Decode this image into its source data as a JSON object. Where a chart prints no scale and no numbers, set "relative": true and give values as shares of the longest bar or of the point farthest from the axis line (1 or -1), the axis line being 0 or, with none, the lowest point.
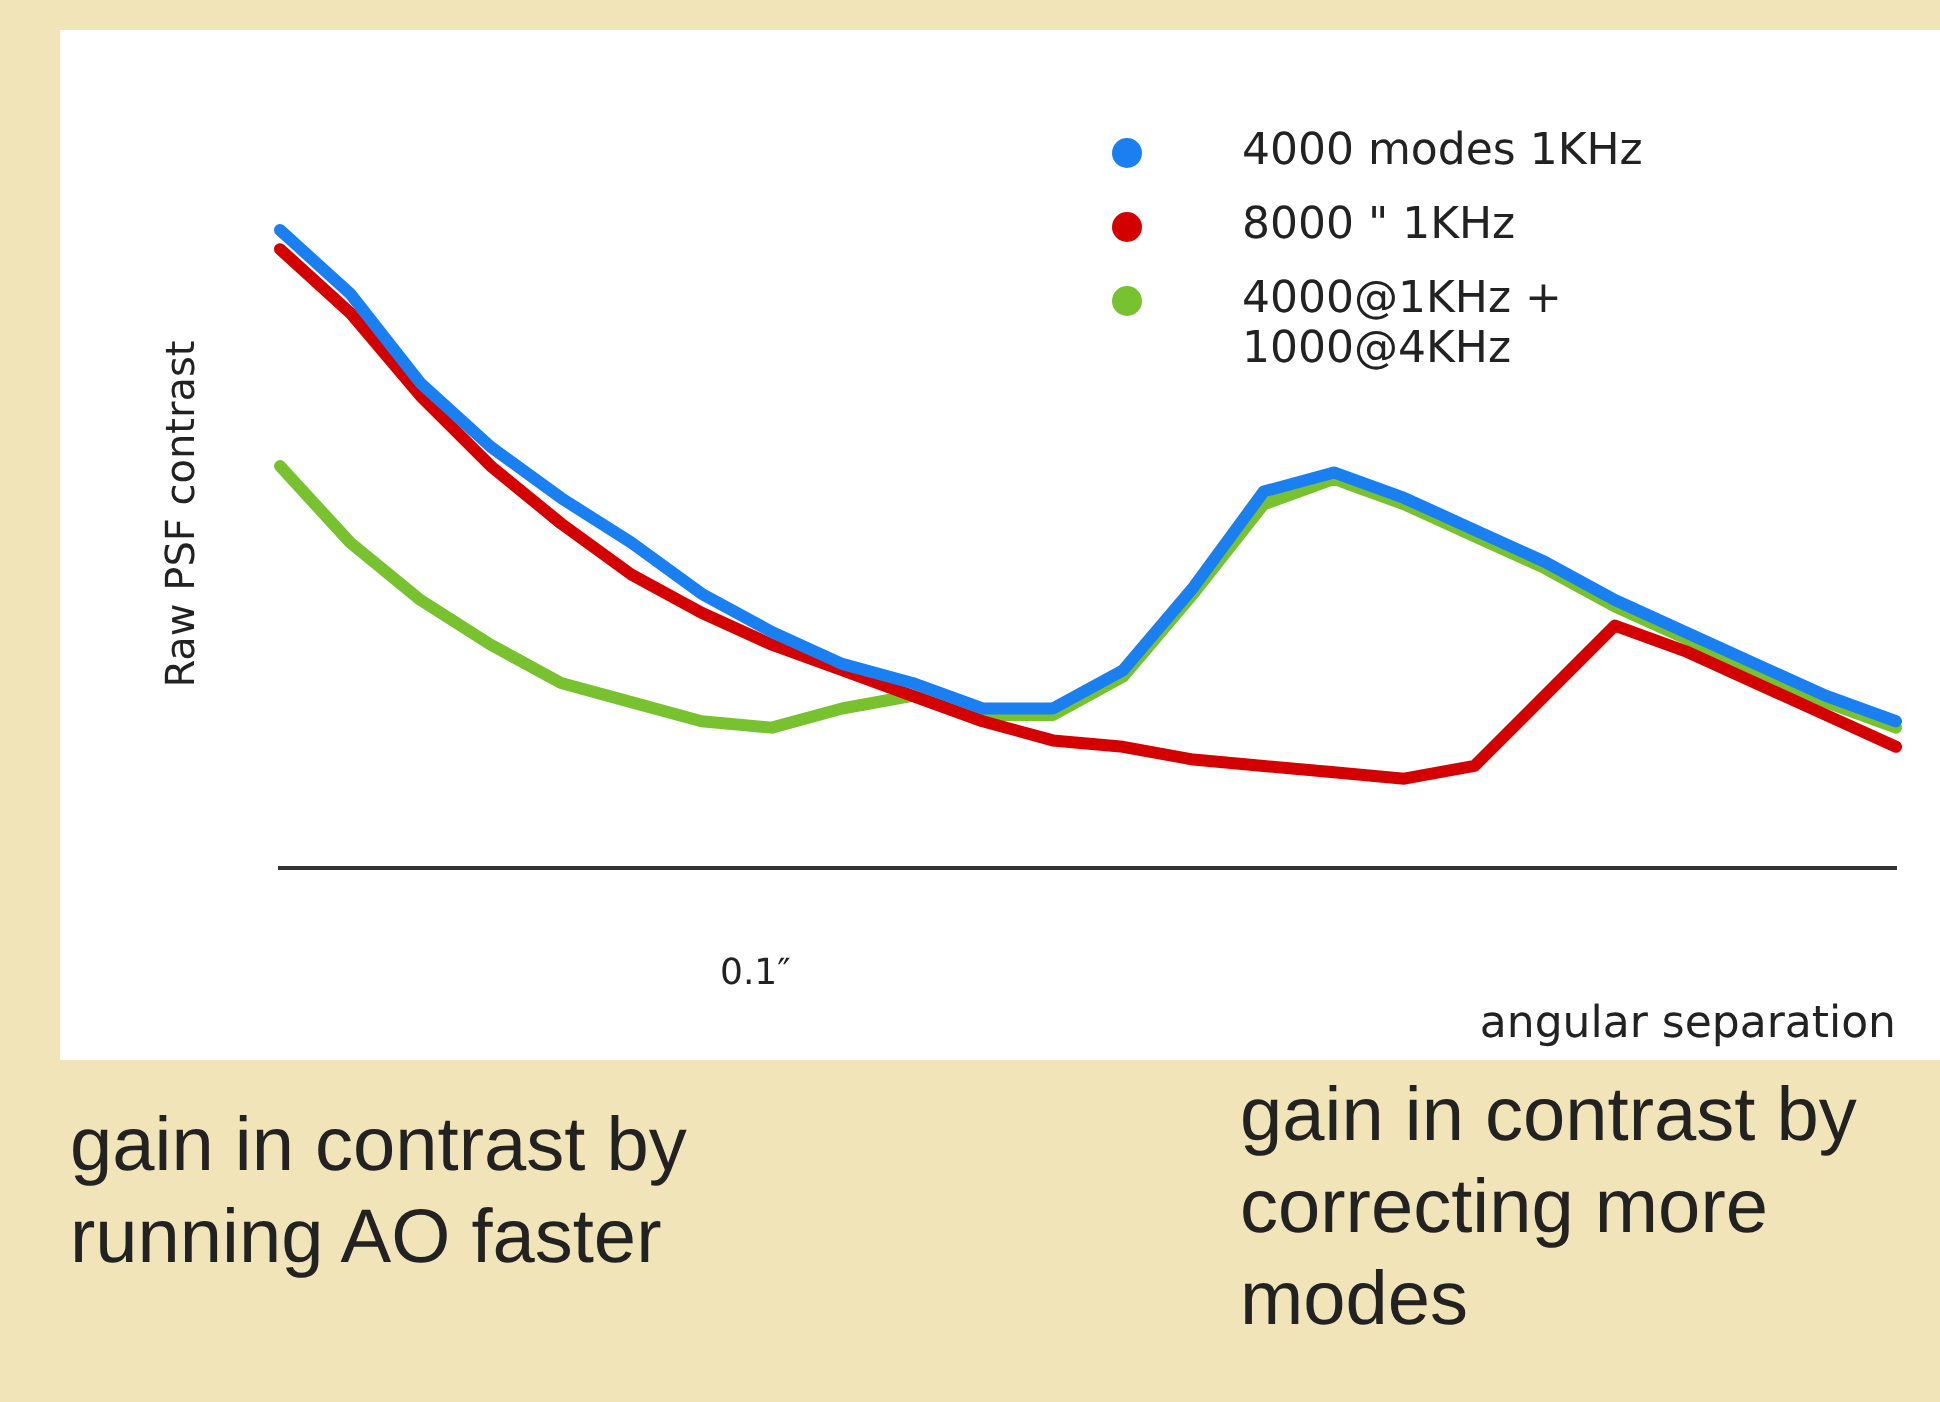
{
  "chart_data": {
    "type": "line",
    "relative": true,
    "ylabel": "Raw PSF contrast",
    "xlabel": "angular separation",
    "legend": "top right",
    "marker": "none",
    "line_style": "solid",
    "grid": false,
    "categories": [
      null,
      null,
      null,
      null,
      null,
      null,
      null,
      null,
      null,
      null,
      null,
      null,
      null,
      null,
      null,
      null,
      null,
      null,
      null,
      null,
      null,
      null,
      null,
      null
    ],
    "series": [
      {
        "name": "4000 modes 1KHz",
        "color": "#1a7ff0",
        "values": [
          1.0,
          0.9,
          0.76,
          0.66,
          0.58,
          0.51,
          0.43,
          0.37,
          0.32,
          0.29,
          0.25,
          0.25,
          0.31,
          0.44,
          0.59,
          0.62,
          0.58,
          0.53,
          0.48,
          0.42,
          0.37,
          0.32,
          0.27,
          0.23
        ]
      },
      {
        "name": "8000 \" 1KHz",
        "color": "#d40000",
        "values": [
          0.97,
          0.87,
          0.74,
          0.63,
          0.54,
          0.46,
          0.4,
          0.35,
          0.31,
          0.27,
          0.23,
          0.2,
          0.19,
          0.17,
          0.16,
          0.15,
          0.14,
          0.16,
          0.27,
          0.38,
          0.34,
          0.29,
          0.24,
          0.19
        ]
      },
      {
        "name": "4000@1KHz + 1000@4KHz",
        "color": "#77c22e",
        "values": [
          0.63,
          0.51,
          0.42,
          0.35,
          0.29,
          0.26,
          0.23,
          0.22,
          0.25,
          0.27,
          0.24,
          0.24,
          0.3,
          0.43,
          0.57,
          0.61,
          0.57,
          0.52,
          0.47,
          0.41,
          0.36,
          0.31,
          0.26,
          0.22
        ]
      }
    ],
    "annotations": [
      "0.1″",
      "gain in contrast by running AO faster",
      "gain in contrast by correcting more modes"
    ]
  }
}
